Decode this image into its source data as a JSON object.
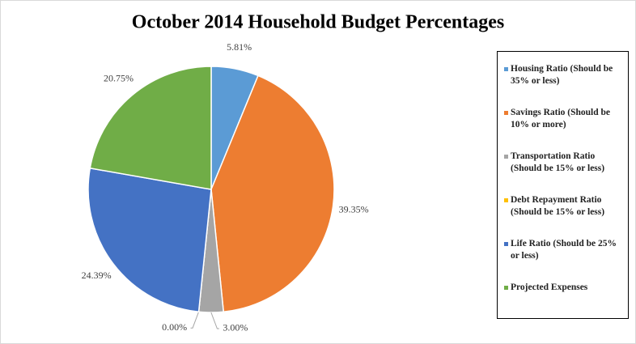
{
  "chart_data": {
    "type": "pie",
    "title": "October 2014 Household Budget Percentages",
    "categories": [
      "Housing Ratio (Should be 35% or less)",
      "Savings Ratio (Should be 10% or more)",
      "Transportation Ratio (Should be 15% or less)",
      "Debt Repayment Ratio (Should be 15% or less)",
      "Life Ratio (Should be 25% or less)",
      "Projected Expenses"
    ],
    "values": [
      5.81,
      39.35,
      3.0,
      0.0,
      24.39,
      20.75
    ],
    "value_labels": [
      "5.81%",
      "39.35%",
      "3.00%",
      "0.00%",
      "24.39%",
      "20.75%"
    ],
    "colors": [
      "#5b9bd5",
      "#ed7d31",
      "#a5a5a5",
      "#ffc000",
      "#4472c4",
      "#70ad47"
    ],
    "legend": "right"
  }
}
